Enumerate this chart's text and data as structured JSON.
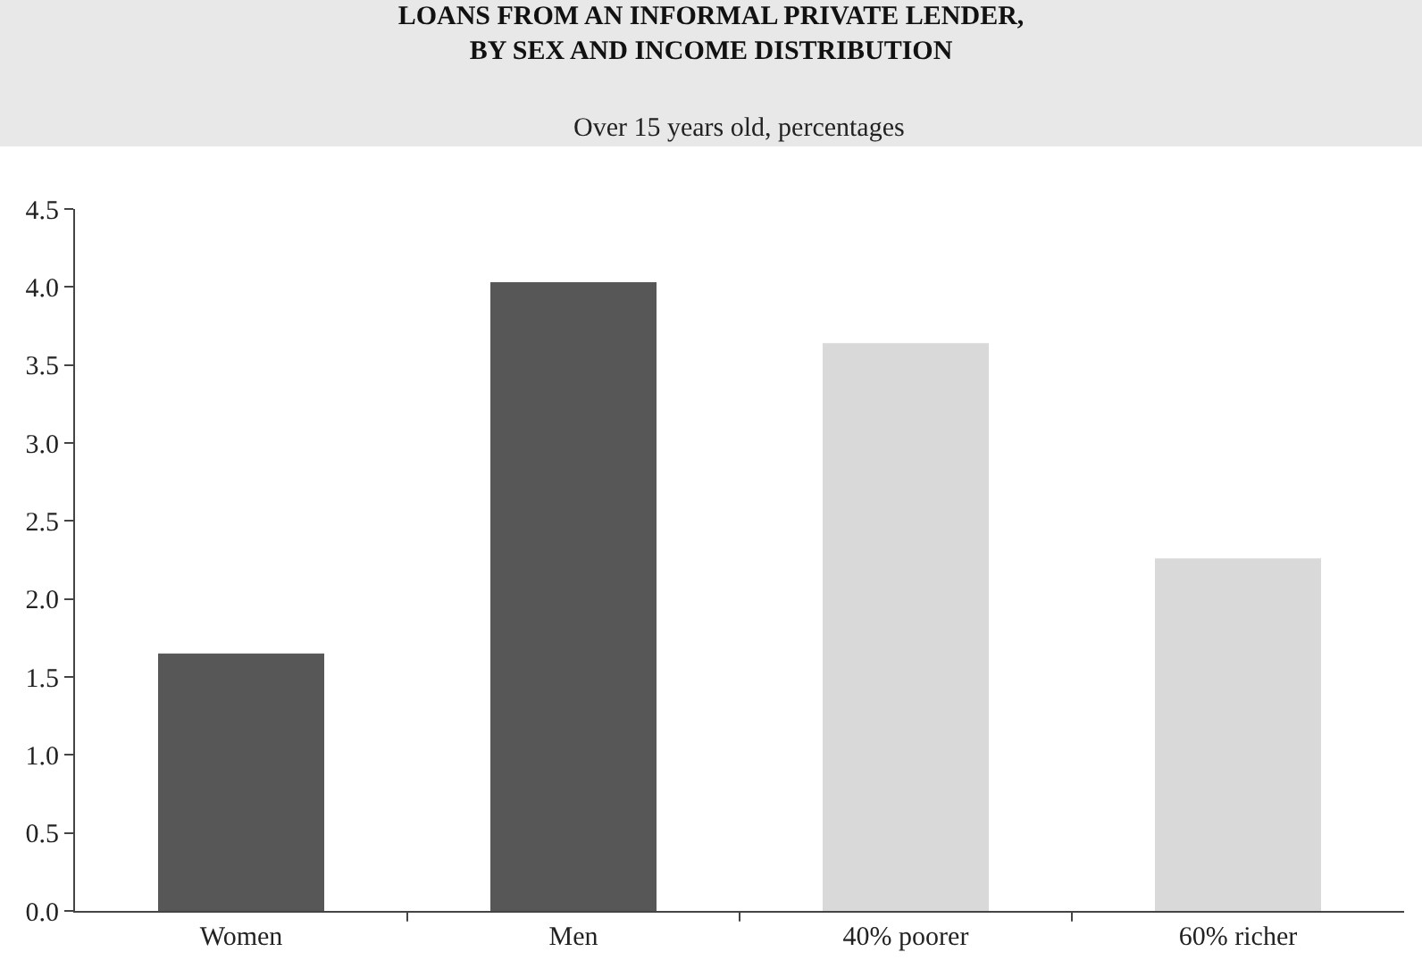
{
  "chart_data": {
    "type": "bar",
    "title": "LOANS FROM AN INFORMAL PRIVATE LENDER,\nBY SEX AND INCOME DISTRIBUTION",
    "subtitle": "Over 15 years old, percentages",
    "categories": [
      "Women",
      "Men",
      "40% poorer",
      "60% richer"
    ],
    "values": [
      1.65,
      4.03,
      3.64,
      2.26
    ],
    "colors": [
      "#575757",
      "#575757",
      "#d9d9d9",
      "#d9d9d9"
    ],
    "ylim": [
      0,
      4.5
    ],
    "yticks": [
      "0.0",
      0.5,
      "1.0",
      1.5,
      "2.0",
      2.5,
      "3.0",
      3.5,
      "4.0",
      4.5
    ],
    "grid": false
  }
}
